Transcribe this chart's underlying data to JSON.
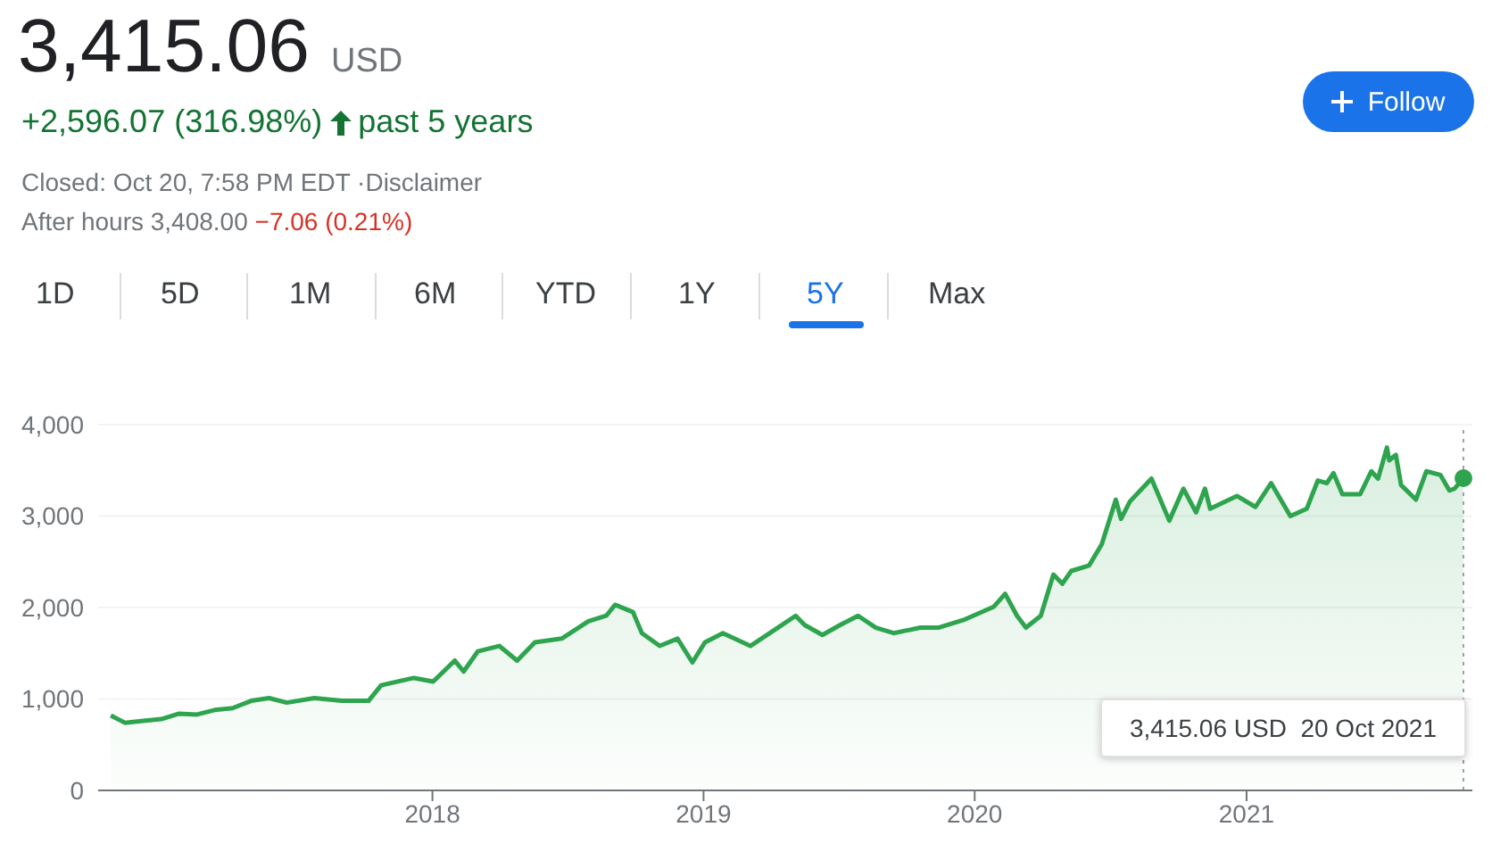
{
  "chart_data": {
    "type": "area",
    "title": "3,415.06",
    "annotations": [
      "USD",
      "+2,596.07 (316.98%)",
      "past 5 years",
      "Closed: Oct 20, 7:58 PM EDT ·Disclaimer",
      "After hours 3,408.00",
      "−7.06 (0.21%)",
      "Follow",
      "1D",
      "5D",
      "1M",
      "6M",
      "YTD",
      "1Y",
      "5Y",
      "Max",
      "3,415.06 USD  20 Oct 2021"
    ],
    "x": [
      "2016-10-25",
      "2016-11-13",
      "2016-12-08",
      "2017-01-01",
      "2017-01-25",
      "2017-02-18",
      "2017-03-14",
      "2017-04-07",
      "2017-05-02",
      "2017-05-26",
      "2017-06-19",
      "2017-07-26",
      "2017-09-01",
      "2017-10-07",
      "2017-10-24",
      "2017-12-07",
      "2018-01-02",
      "2018-01-31",
      "2018-02-12",
      "2018-03-03",
      "2018-04-01",
      "2018-04-25",
      "2018-05-19",
      "2018-06-24",
      "2018-07-30",
      "2018-08-23",
      "2018-09-04",
      "2018-09-28",
      "2018-10-10",
      "2018-11-03",
      "2018-11-27",
      "2018-12-17",
      "2019-01-03",
      "2019-01-27",
      "2019-03-05",
      "2019-04-11",
      "2019-05-05",
      "2019-05-17",
      "2019-06-10",
      "2019-07-04",
      "2019-07-28",
      "2019-08-21",
      "2019-09-14",
      "2019-10-20",
      "2019-11-13",
      "2019-12-19",
      "2020-01-27",
      "2020-02-11",
      "2020-02-27",
      "2020-03-10",
      "2020-03-30",
      "2020-04-16",
      "2020-04-28",
      "2020-05-10",
      "2020-06-03",
      "2020-06-20",
      "2020-07-09",
      "2020-07-16",
      "2020-07-28",
      "2020-08-26",
      "2020-09-19",
      "2020-10-08",
      "2020-10-25",
      "2020-11-06",
      "2020-11-13",
      "2020-12-19",
      "2021-01-13",
      "2021-02-03",
      "2021-03-01",
      "2021-03-23",
      "2021-04-07",
      "2021-04-19",
      "2021-04-28",
      "2021-05-10",
      "2021-06-03",
      "2021-06-18",
      "2021-06-27",
      "2021-07-09",
      "2021-07-12",
      "2021-07-21",
      "2021-07-28",
      "2021-08-17",
      "2021-08-31",
      "2021-09-19",
      "2021-10-01",
      "2021-10-08",
      "2021-10-20"
    ],
    "series": [
      {
        "color": "#2ea44f",
        "values": [
          820,
          740,
          760,
          780,
          840,
          830,
          880,
          900,
          980,
          1010,
          960,
          1010,
          980,
          980,
          1150,
          1230,
          1190,
          1420,
          1300,
          1520,
          1580,
          1420,
          1620,
          1660,
          1850,
          1910,
          2030,
          1950,
          1720,
          1580,
          1660,
          1400,
          1620,
          1720,
          1580,
          1780,
          1910,
          1810,
          1700,
          1810,
          1910,
          1780,
          1720,
          1780,
          1780,
          1870,
          2010,
          2150,
          1910,
          1780,
          1910,
          2360,
          2260,
          2400,
          2460,
          2690,
          3180,
          2970,
          3160,
          3410,
          2950,
          3300,
          3040,
          3300,
          3080,
          3220,
          3100,
          3360,
          3000,
          3080,
          3390,
          3360,
          3470,
          3240,
          3240,
          3490,
          3410,
          3750,
          3610,
          3670,
          3340,
          3180,
          3490,
          3450,
          3280,
          3300,
          3415.06
        ]
      }
    ],
    "xlim": [
      "2016-10-08",
      "2021-11-01"
    ],
    "xticks": [
      "2018",
      "2019",
      "2020",
      "2021"
    ],
    "ylim": [
      0,
      4000
    ],
    "yticks": [
      0,
      {
        "value": 1000,
        "label": "1,000"
      },
      {
        "value": 2000,
        "label": "2,000"
      },
      {
        "value": 3000,
        "label": "3,000"
      },
      {
        "value": 4000,
        "label": "4,000"
      }
    ],
    "ref_lines": [
      {
        "axis": "x",
        "value": "2021-10-20",
        "line_style": "dotted",
        "color": "#9aa0a6"
      }
    ],
    "grid": "y",
    "marker": "none"
  }
}
